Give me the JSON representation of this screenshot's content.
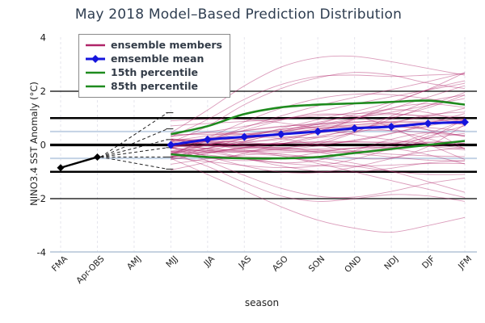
{
  "chart_data": {
    "type": "line",
    "title": "May 2018 Model–Based Prediction Distribution",
    "xlabel": "season",
    "ylabel": "NINO3.4 SST Anomaly (°C)",
    "ylim": [
      -4,
      4
    ],
    "yticks": [
      4,
      2,
      0,
      -2,
      -4
    ],
    "categories": [
      "FMA",
      "Apr-OBS",
      "AMJ",
      "MJJ",
      "JJA",
      "JAS",
      "ASO",
      "SON",
      "OND",
      "NDJ",
      "DJF",
      "JFM"
    ],
    "grid": "vertical-dashed",
    "legend_position": "top-left",
    "legend": [
      {
        "label": "ensemble members",
        "color": "#b02468",
        "marker": "line"
      },
      {
        "label": "emsemble mean",
        "color": "#1515dd",
        "marker": "diamond-line"
      },
      {
        "label": "15th percentile",
        "color": "#1e8b1e",
        "marker": "line"
      },
      {
        "label": "85th percentile",
        "color": "#1e8b1e",
        "marker": "line"
      }
    ],
    "reference_lines": [
      {
        "y": 2,
        "color": "#000000",
        "width": 1.2
      },
      {
        "y": 1,
        "color": "#000000",
        "width": 2.6
      },
      {
        "y": 0.5,
        "color": "#c3d2e4",
        "width": 2
      },
      {
        "y": 0,
        "color": "#000000",
        "width": 3.2
      },
      {
        "y": -0.5,
        "color": "#c3d2e4",
        "width": 2
      },
      {
        "y": -1,
        "color": "#000000",
        "width": 2.6
      },
      {
        "y": -2,
        "color": "#000000",
        "width": 1.2
      }
    ],
    "axis_line_color": "#b4c3d6",
    "colors": {
      "members": "#b02468",
      "mean": "#1515dd",
      "percentile": "#1e8b1e",
      "observed": "#000000"
    },
    "observed": {
      "categories": [
        "FMA",
        "Apr-OBS"
      ],
      "values": [
        -0.85,
        -0.45
      ]
    },
    "ensemble_mean": {
      "categories": [
        "MJJ",
        "JJA",
        "JAS",
        "ASO",
        "SON",
        "OND",
        "NDJ",
        "DJF",
        "JFM"
      ],
      "values": [
        0.0,
        0.2,
        0.3,
        0.4,
        0.5,
        0.62,
        0.68,
        0.8,
        0.85
      ]
    },
    "percentile_15": {
      "values": [
        -0.35,
        -0.45,
        -0.5,
        -0.5,
        -0.45,
        -0.3,
        -0.15,
        0.0,
        0.15
      ]
    },
    "percentile_85": {
      "values": [
        0.4,
        0.7,
        1.15,
        1.4,
        1.5,
        1.55,
        1.6,
        1.65,
        1.5
      ]
    },
    "fan": {
      "origin_category": "Apr-OBS",
      "origin_value": -0.45,
      "target_category": "MJJ",
      "target_values": [
        1.2,
        0.6,
        0.2,
        -0.1,
        -0.45,
        -0.9
      ]
    },
    "ensemble_members": {
      "count": 48,
      "opacity": 0.45,
      "seed": 11,
      "start_spread": 0.38,
      "end_mean": 0.8,
      "end_spread": 1.05,
      "outliers": [
        [
          0.45,
          1.3,
          2.2,
          2.9,
          3.25,
          3.3,
          3.1,
          2.85,
          2.6
        ],
        [
          0.3,
          0.95,
          1.7,
          2.25,
          2.55,
          2.6,
          2.55,
          2.6,
          2.65
        ],
        [
          0.1,
          0.7,
          1.5,
          2.1,
          2.5,
          2.7,
          2.6,
          2.3,
          2.1
        ],
        [
          -0.5,
          -1.1,
          -1.7,
          -2.3,
          -2.8,
          -3.1,
          -3.25,
          -3.0,
          -2.7
        ],
        [
          -0.3,
          -0.8,
          -1.4,
          -1.9,
          -2.1,
          -2.0,
          -1.85,
          -1.9,
          -2.1
        ]
      ]
    }
  }
}
